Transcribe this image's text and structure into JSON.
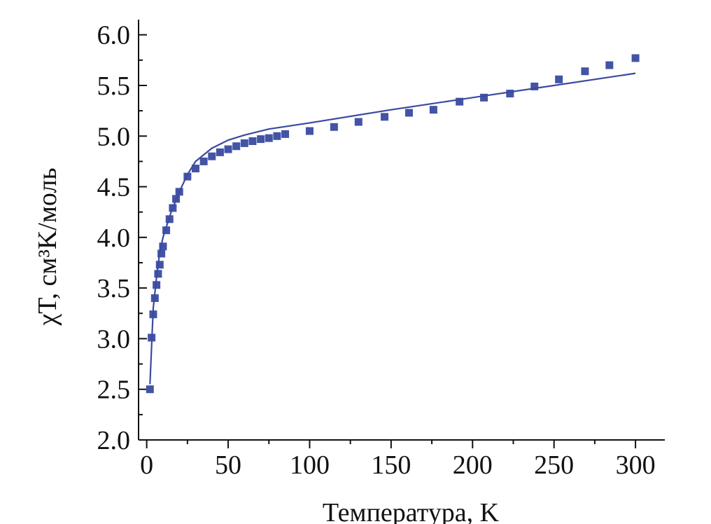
{
  "chart_data": {
    "type": "scatter",
    "x_label": "Температура, K",
    "y_label": "χT, см³K/моль",
    "xlim": [
      -5,
      318
    ],
    "ylim": [
      2.0,
      6.15
    ],
    "xticks": [
      0,
      50,
      100,
      150,
      200,
      250,
      300
    ],
    "xminor_ticks": [
      25,
      75,
      125,
      175,
      225,
      275
    ],
    "yticks": [
      {
        "value": 2,
        "label": "2.0"
      },
      2.5,
      {
        "value": 3,
        "label": "3.0"
      },
      3.5,
      {
        "value": 4,
        "label": "4.0"
      },
      4.5,
      {
        "value": 5,
        "label": "5.0"
      },
      5.5,
      {
        "value": 6,
        "label": "6.0"
      }
    ],
    "yminor_ticks": [
      2.25,
      2.75,
      3.25,
      3.75,
      4.25,
      4.75,
      5.25,
      5.75
    ],
    "series": [
      {
        "style": "markers",
        "color": "#4354a6",
        "x": [
          2,
          3,
          4,
          5,
          6,
          7,
          8,
          9,
          10,
          12,
          14,
          16,
          18,
          20,
          25,
          30,
          35,
          40,
          45,
          50,
          55,
          60,
          65,
          70,
          75,
          80,
          85,
          100,
          115,
          130,
          146,
          161,
          176,
          192,
          207,
          223,
          238,
          253,
          269,
          284,
          300
        ],
        "values": [
          2.5,
          3.01,
          3.24,
          3.4,
          3.53,
          3.64,
          3.73,
          3.84,
          3.91,
          4.07,
          4.18,
          4.29,
          4.38,
          4.45,
          4.6,
          4.68,
          4.75,
          4.8,
          4.84,
          4.87,
          4.9,
          4.93,
          4.95,
          4.97,
          4.98,
          5.0,
          5.02,
          5.05,
          5.09,
          5.14,
          5.19,
          5.23,
          5.26,
          5.34,
          5.38,
          5.42,
          5.49,
          5.56,
          5.64,
          5.7,
          5.77
        ]
      },
      {
        "style": "line",
        "color": "#3a4aa0",
        "x": [
          2,
          4,
          6,
          8,
          10,
          15,
          20,
          25,
          30,
          40,
          50,
          60,
          75,
          100,
          150,
          200,
          250,
          300
        ],
        "values": [
          2.55,
          3.3,
          3.6,
          3.85,
          4.0,
          4.25,
          4.45,
          4.62,
          4.75,
          4.88,
          4.96,
          5.01,
          5.07,
          5.13,
          5.26,
          5.38,
          5.5,
          5.62
        ]
      }
    ]
  }
}
